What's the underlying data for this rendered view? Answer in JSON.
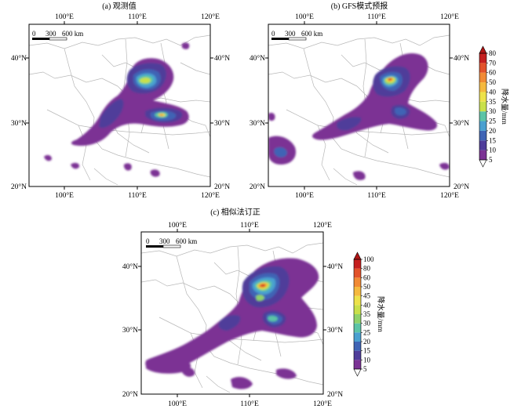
{
  "panels": [
    {
      "id": "a",
      "title": "(a) 观测值",
      "lon_ticks": [
        "100°E",
        "110°E",
        "120°E"
      ],
      "lat_ticks": [
        "40°N",
        "30°N",
        "20°N"
      ],
      "scale_bar": {
        "labels": [
          "0",
          "300",
          "600 km"
        ]
      }
    },
    {
      "id": "b",
      "title": "(b) GFS模式预报",
      "lon_ticks": [
        "100°E",
        "110°E",
        "120°E"
      ],
      "lat_ticks": [
        "40°N",
        "30°N",
        "20°N"
      ],
      "scale_bar": {
        "labels": [
          "0",
          "300",
          "600 km"
        ]
      }
    },
    {
      "id": "c",
      "title": "(c) 相似法订正",
      "lon_ticks": [
        "100°E",
        "110°E",
        "120°E"
      ],
      "lat_ticks": [
        "40°N",
        "30°N",
        "20°N"
      ],
      "scale_bar": {
        "labels": [
          "0",
          "300",
          "600 km"
        ]
      }
    }
  ],
  "colorbars": [
    {
      "for": "a-b",
      "title": "降水量/mm",
      "levels": [
        "5",
        "10",
        "15",
        "20",
        "25",
        "30",
        "35",
        "40",
        "50",
        "60",
        "70",
        "80"
      ]
    },
    {
      "for": "c",
      "title": "降水量/mm",
      "levels": [
        "5",
        "10",
        "15",
        "20",
        "25",
        "30",
        "35",
        "40",
        "45",
        "50",
        "60",
        "80",
        "100"
      ]
    }
  ],
  "colors": {
    "bins": [
      "#7b3294",
      "#4f3d9a",
      "#3f64b5",
      "#4aa0d0",
      "#5cc4a6",
      "#8fd26a",
      "#c9e04a",
      "#ede24a",
      "#f5b93e",
      "#f18a34",
      "#e2522a",
      "#c51f1f"
    ],
    "boundary": "#b8b8b8",
    "frame": "#000000"
  }
}
